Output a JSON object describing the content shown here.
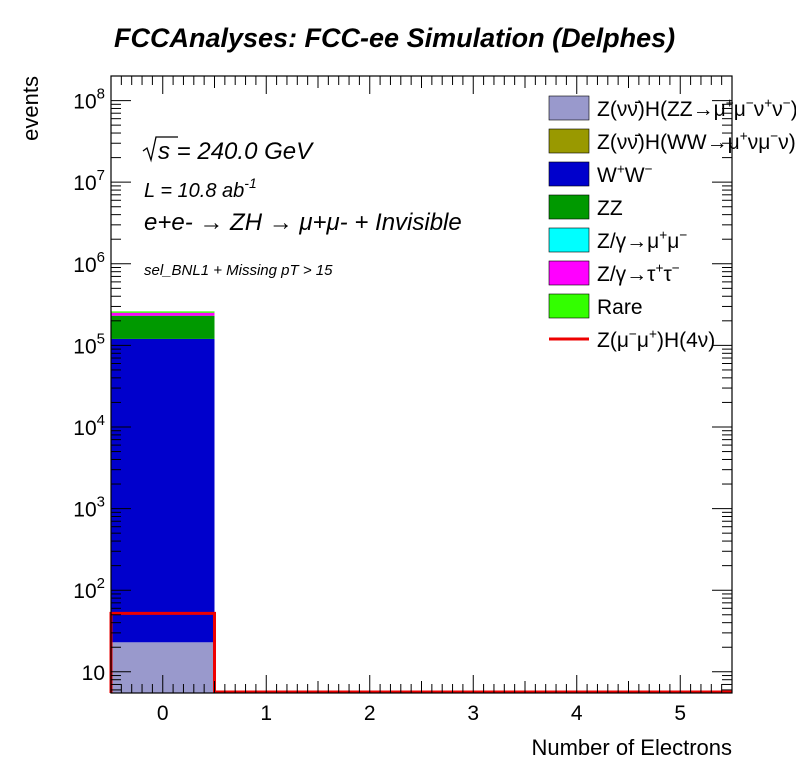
{
  "chart_data": {
    "type": "bar",
    "stacked": true,
    "title": "FCCAnalyses: FCC-ee Simulation (Delphes)",
    "xlabel": "Number of Electrons",
    "ylabel": "events",
    "y_scale": "log",
    "ylim": [
      5.5,
      200000000
    ],
    "xlim": [
      -0.5,
      5.5
    ],
    "x_ticks": [
      "0",
      "1",
      "2",
      "3",
      "4",
      "5"
    ],
    "y_ticks": [
      "10",
      "10^2",
      "10^3",
      "10^4",
      "10^5",
      "10^6",
      "10^7",
      "10^8"
    ],
    "bin_edges": [
      -0.5,
      0.5,
      1.5,
      2.5,
      3.5,
      4.5,
      5.5
    ],
    "annotations": {
      "sqrt_s": "s = 240.0 GeV",
      "lumi": "L = 10.8 ab",
      "lumi_exp": "-1",
      "process": "e+e- → ZH → μ+μ- + Invisible",
      "selection": "sel_BNL1 + Missing pT > 15"
    },
    "legend_position": "top-right",
    "series": [
      {
        "name": "Z(νν̄)H(ZZ→μ+μ-ν+ν-)",
        "color": "#9999cc",
        "values": [
          23,
          0,
          0,
          0,
          0,
          0
        ]
      },
      {
        "name": "Z(νν̄)H(WW→μ+νμ-ν)",
        "color": "#999900",
        "values": [
          0,
          0,
          0,
          0,
          0,
          0
        ]
      },
      {
        "name": "W+W-",
        "color": "#0000cc",
        "values": [
          120000,
          0,
          0,
          0,
          0,
          0
        ]
      },
      {
        "name": "ZZ",
        "color": "#009900",
        "values": [
          111000,
          0,
          0,
          0,
          0,
          0
        ]
      },
      {
        "name": "Z/γ→μ+μ-",
        "color": "#00ffff",
        "values": [
          0,
          0,
          0,
          0,
          0,
          0
        ]
      },
      {
        "name": "Z/γ→τ+τ-",
        "color": "#ff00ff",
        "values": [
          20000,
          0,
          0,
          0,
          0,
          0
        ]
      },
      {
        "name": "Rare",
        "color": "#33ff00",
        "values": [
          9850,
          0,
          0,
          0,
          0,
          0
        ]
      }
    ],
    "signal": {
      "name": "Z(μ-μ+)H(4ν)",
      "color": "#ee0000",
      "values": [
        52,
        0,
        0,
        0,
        0,
        0
      ]
    }
  }
}
